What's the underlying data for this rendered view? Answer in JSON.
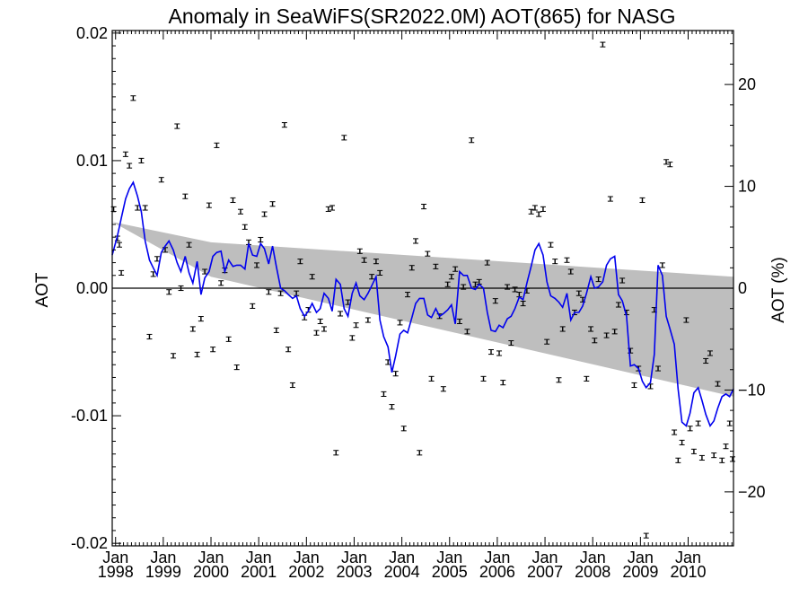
{
  "chart_data": {
    "type": "scatter",
    "title": "Anomaly in SeaWiFS(SR2022.0M) AOT(865) for NASG",
    "ylabel_left": "AOT",
    "ylabel_right": "AOT (%)",
    "xlabel": "",
    "xlim": [
      1997.93,
      2010.95
    ],
    "ylim": [
      -0.0202,
      0.0202
    ],
    "ylim_right_percent": [
      -25.3,
      25.3
    ],
    "x_ticks": [
      {
        "x": 1998.0,
        "month": "Jan",
        "year": "1998"
      },
      {
        "x": 1999.0,
        "month": "Jan",
        "year": "1999"
      },
      {
        "x": 2000.0,
        "month": "Jan",
        "year": "2000"
      },
      {
        "x": 2001.0,
        "month": "Jan",
        "year": "2001"
      },
      {
        "x": 2002.0,
        "month": "Jan",
        "year": "2002"
      },
      {
        "x": 2003.0,
        "month": "Jan",
        "year": "2003"
      },
      {
        "x": 2004.0,
        "month": "Jan",
        "year": "2004"
      },
      {
        "x": 2005.0,
        "month": "Jan",
        "year": "2005"
      },
      {
        "x": 2006.0,
        "month": "Jan",
        "year": "2006"
      },
      {
        "x": 2007.0,
        "month": "Jan",
        "year": "2007"
      },
      {
        "x": 2008.0,
        "month": "Jan",
        "year": "2008"
      },
      {
        "x": 2009.0,
        "month": "Jan",
        "year": "2009"
      },
      {
        "x": 2010.0,
        "month": "Jan",
        "year": "2010"
      }
    ],
    "y_ticks_left": [
      {
        "value": 0.02,
        "label": "0.02"
      },
      {
        "value": 0.01,
        "label": "0.01"
      },
      {
        "value": 0.0,
        "label": "0.00"
      },
      {
        "value": -0.01,
        "label": "-0.01"
      },
      {
        "value": -0.02,
        "label": "-0.02"
      }
    ],
    "y_ticks_right": [
      {
        "value": 20,
        "label": "20"
      },
      {
        "value": 10,
        "label": "10"
      },
      {
        "value": 0,
        "label": "0"
      },
      {
        "value": -10,
        "label": "−10"
      },
      {
        "value": -20,
        "label": "−20"
      }
    ],
    "zero_line": 0.0,
    "band": {
      "x": [
        1997.93,
        2000.0,
        2010.95
      ],
      "upper": [
        0.0052,
        0.0036,
        0.0009
      ],
      "lower": [
        0.0052,
        0.0009,
        -0.0085
      ],
      "color": "#bebebe"
    },
    "scatter_error_bar_half_height": 0.00018,
    "scatter_points": [
      [
        1997.96,
        0.0062
      ],
      [
        1998.04,
        0.0039
      ],
      [
        1998.08,
        0.0034
      ],
      [
        1998.12,
        0.0012
      ],
      [
        1998.21,
        0.0105
      ],
      [
        1998.29,
        0.0096
      ],
      [
        1998.37,
        0.0149
      ],
      [
        1998.46,
        0.0063
      ],
      [
        1998.54,
        0.01
      ],
      [
        1998.62,
        0.0063
      ],
      [
        1998.71,
        -0.0038
      ],
      [
        1998.79,
        0.0011
      ],
      [
        1998.87,
        0.0023
      ],
      [
        1998.96,
        0.0085
      ],
      [
        1999.04,
        0.003
      ],
      [
        1999.12,
        -0.0003
      ],
      [
        1999.21,
        -0.0053
      ],
      [
        1999.29,
        0.0127
      ],
      [
        1999.37,
        0.0
      ],
      [
        1999.46,
        0.0072
      ],
      [
        1999.54,
        0.0034
      ],
      [
        1999.62,
        -0.0032
      ],
      [
        1999.71,
        -0.0052
      ],
      [
        1999.79,
        -0.0024
      ],
      [
        1999.87,
        0.0013
      ],
      [
        1999.96,
        0.0065
      ],
      [
        2000.04,
        -0.0048
      ],
      [
        2000.12,
        0.0112
      ],
      [
        2000.21,
        0.0004
      ],
      [
        2000.29,
        0.0014
      ],
      [
        2000.37,
        -0.004
      ],
      [
        2000.46,
        0.0069
      ],
      [
        2000.54,
        -0.0062
      ],
      [
        2000.62,
        0.006
      ],
      [
        2000.71,
        0.0048
      ],
      [
        2000.79,
        0.0036
      ],
      [
        2000.87,
        -0.0014
      ],
      [
        2000.96,
        0.0018
      ],
      [
        2001.04,
        0.0038
      ],
      [
        2001.12,
        0.0058
      ],
      [
        2001.21,
        -0.0003
      ],
      [
        2001.29,
        0.0066
      ],
      [
        2001.37,
        -0.0033
      ],
      [
        2001.46,
        -0.0004
      ],
      [
        2001.54,
        0.0128
      ],
      [
        2001.62,
        -0.0048
      ],
      [
        2001.71,
        -0.0076
      ],
      [
        2001.79,
        -0.0004
      ],
      [
        2001.87,
        0.0021
      ],
      [
        2001.96,
        -0.0023
      ],
      [
        2002.04,
        -0.0017
      ],
      [
        2002.12,
        0.0009
      ],
      [
        2002.21,
        -0.0035
      ],
      [
        2002.29,
        -0.0026
      ],
      [
        2002.37,
        -0.0032
      ],
      [
        2002.46,
        0.0062
      ],
      [
        2002.54,
        0.0063
      ],
      [
        2002.62,
        -0.0129
      ],
      [
        2002.71,
        -0.002
      ],
      [
        2002.79,
        0.0118
      ],
      [
        2002.87,
        -0.0011
      ],
      [
        2002.96,
        -0.0039
      ],
      [
        2003.04,
        -0.0029
      ],
      [
        2003.12,
        0.0029
      ],
      [
        2003.21,
        0.0022
      ],
      [
        2003.29,
        -0.0025
      ],
      [
        2003.37,
        0.0009
      ],
      [
        2003.46,
        0.0021
      ],
      [
        2003.54,
        0.0012
      ],
      [
        2003.62,
        -0.0083
      ],
      [
        2003.71,
        -0.0058
      ],
      [
        2003.79,
        -0.0093
      ],
      [
        2003.87,
        -0.0067
      ],
      [
        2003.96,
        -0.0027
      ],
      [
        2004.04,
        -0.011
      ],
      [
        2004.12,
        -0.0005
      ],
      [
        2004.21,
        0.0016
      ],
      [
        2004.29,
        0.0037
      ],
      [
        2004.37,
        -0.0129
      ],
      [
        2004.46,
        0.0064
      ],
      [
        2004.54,
        0.0027
      ],
      [
        2004.62,
        -0.0071
      ],
      [
        2004.71,
        0.0017
      ],
      [
        2004.79,
        -0.0022
      ],
      [
        2004.87,
        -0.0079
      ],
      [
        2004.96,
        0.0003
      ],
      [
        2005.04,
        0.0009
      ],
      [
        2005.12,
        0.0015
      ],
      [
        2005.21,
        -0.0026
      ],
      [
        2005.29,
        0.0001
      ],
      [
        2005.37,
        -0.0034
      ],
      [
        2005.46,
        0.0116
      ],
      [
        2005.54,
        0.0003
      ],
      [
        2005.62,
        0.0005
      ],
      [
        2005.71,
        -0.0071
      ],
      [
        2005.79,
        0.002
      ],
      [
        2005.87,
        -0.005
      ],
      [
        2005.96,
        -0.001
      ],
      [
        2006.04,
        -0.0051
      ],
      [
        2006.12,
        -0.0074
      ],
      [
        2006.21,
        0.0001
      ],
      [
        2006.29,
        -0.0043
      ],
      [
        2006.37,
        -0.0001
      ],
      [
        2006.46,
        -0.0005
      ],
      [
        2006.54,
        -0.0012
      ],
      [
        2006.62,
        -0.0002
      ],
      [
        2006.71,
        0.006
      ],
      [
        2006.79,
        0.0063
      ],
      [
        2006.87,
        0.0058
      ],
      [
        2006.96,
        0.0062
      ],
      [
        2007.04,
        -0.0042
      ],
      [
        2007.12,
        0.0034
      ],
      [
        2007.21,
        0.0021
      ],
      [
        2007.29,
        -0.0072
      ],
      [
        2007.37,
        -0.0032
      ],
      [
        2007.46,
        0.0022
      ],
      [
        2007.54,
        0.0013
      ],
      [
        2007.62,
        -0.0019
      ],
      [
        2007.71,
        -0.0004
      ],
      [
        2007.79,
        -0.0009
      ],
      [
        2007.87,
        -0.0071
      ],
      [
        2007.96,
        -0.0032
      ],
      [
        2008.04,
        -0.0041
      ],
      [
        2008.12,
        0.0007
      ],
      [
        2008.21,
        0.0191
      ],
      [
        2008.29,
        -0.0037
      ],
      [
        2008.37,
        0.007
      ],
      [
        2008.46,
        -0.0034
      ],
      [
        2008.54,
        -0.0013
      ],
      [
        2008.62,
        0.0006
      ],
      [
        2008.71,
        -0.0019
      ],
      [
        2008.79,
        -0.0049
      ],
      [
        2008.87,
        -0.0076
      ],
      [
        2008.96,
        -0.0063
      ],
      [
        2009.04,
        0.0069
      ],
      [
        2009.12,
        -0.0194
      ],
      [
        2009.21,
        -0.0077
      ],
      [
        2009.29,
        -0.0017
      ],
      [
        2009.37,
        -0.0063
      ],
      [
        2009.46,
        0.0018
      ],
      [
        2009.54,
        0.0099
      ],
      [
        2009.62,
        0.0097
      ],
      [
        2009.71,
        -0.0113
      ],
      [
        2009.79,
        -0.0135
      ],
      [
        2009.87,
        -0.0121
      ],
      [
        2009.96,
        -0.0025
      ],
      [
        2010.04,
        -0.011
      ],
      [
        2010.12,
        -0.0128
      ],
      [
        2010.21,
        -0.0106
      ],
      [
        2010.29,
        -0.0133
      ],
      [
        2010.37,
        -0.0057
      ],
      [
        2010.46,
        -0.0051
      ],
      [
        2010.54,
        -0.0131
      ],
      [
        2010.62,
        -0.0075
      ],
      [
        2010.71,
        -0.0135
      ],
      [
        2010.79,
        -0.0124
      ],
      [
        2010.87,
        -0.0106
      ],
      [
        2010.93,
        -0.0134
      ]
    ],
    "line_color": "#0000ee",
    "line_points": [
      [
        1997.93,
        0.0026
      ],
      [
        1998.04,
        0.0041
      ],
      [
        1998.12,
        0.0055
      ],
      [
        1998.21,
        0.007
      ],
      [
        1998.29,
        0.0078
      ],
      [
        1998.37,
        0.0083
      ],
      [
        1998.46,
        0.0072
      ],
      [
        1998.54,
        0.006
      ],
      [
        1998.62,
        0.0037
      ],
      [
        1998.71,
        0.0022
      ],
      [
        1998.79,
        0.0016
      ],
      [
        1998.87,
        0.001
      ],
      [
        1998.96,
        0.0028
      ],
      [
        1999.04,
        0.0033
      ],
      [
        1999.12,
        0.0037
      ],
      [
        1999.21,
        0.003
      ],
      [
        1999.29,
        0.002
      ],
      [
        1999.37,
        0.0013
      ],
      [
        1999.46,
        0.0025
      ],
      [
        1999.54,
        0.0012
      ],
      [
        1999.62,
        0.0004
      ],
      [
        1999.71,
        0.0021
      ],
      [
        1999.79,
        -0.0005
      ],
      [
        1999.87,
        0.0008
      ],
      [
        1999.96,
        0.0013
      ],
      [
        2000.04,
        0.0025
      ],
      [
        2000.12,
        0.0028
      ],
      [
        2000.21,
        0.0029
      ],
      [
        2000.29,
        0.0013
      ],
      [
        2000.37,
        0.0022
      ],
      [
        2000.46,
        0.0017
      ],
      [
        2000.54,
        0.0018
      ],
      [
        2000.62,
        0.0018
      ],
      [
        2000.71,
        0.0015
      ],
      [
        2000.79,
        0.0035
      ],
      [
        2000.87,
        0.0026
      ],
      [
        2000.96,
        0.0025
      ],
      [
        2001.04,
        0.0035
      ],
      [
        2001.12,
        0.0031
      ],
      [
        2001.21,
        0.0019
      ],
      [
        2001.29,
        0.0033
      ],
      [
        2001.37,
        0.0017
      ],
      [
        2001.46,
        0.0
      ],
      [
        2001.54,
        -0.0002
      ],
      [
        2001.62,
        -0.0005
      ],
      [
        2001.71,
        -0.0008
      ],
      [
        2001.79,
        -0.0006
      ],
      [
        2001.87,
        -0.0016
      ],
      [
        2001.96,
        -0.0022
      ],
      [
        2002.04,
        -0.0018
      ],
      [
        2002.12,
        -0.0012
      ],
      [
        2002.21,
        -0.0019
      ],
      [
        2002.29,
        -0.0016
      ],
      [
        2002.37,
        -0.0004
      ],
      [
        2002.46,
        -0.0008
      ],
      [
        2002.54,
        -0.0018
      ],
      [
        2002.62,
        0.0007
      ],
      [
        2002.71,
        0.0003
      ],
      [
        2002.79,
        -0.0016
      ],
      [
        2002.87,
        -0.0022
      ],
      [
        2002.96,
        -0.0004
      ],
      [
        2003.04,
        0.0004
      ],
      [
        2003.12,
        -0.0006
      ],
      [
        2003.21,
        -0.0009
      ],
      [
        2003.29,
        -0.0004
      ],
      [
        2003.37,
        0.0002
      ],
      [
        2003.46,
        0.0009
      ],
      [
        2003.54,
        -0.0025
      ],
      [
        2003.62,
        -0.0038
      ],
      [
        2003.71,
        -0.0046
      ],
      [
        2003.79,
        -0.0066
      ],
      [
        2003.87,
        -0.0053
      ],
      [
        2003.96,
        -0.0036
      ],
      [
        2004.04,
        -0.0033
      ],
      [
        2004.12,
        -0.0035
      ],
      [
        2004.21,
        -0.0023
      ],
      [
        2004.29,
        -0.0012
      ],
      [
        2004.37,
        -0.0008
      ],
      [
        2004.46,
        -0.0008
      ],
      [
        2004.54,
        -0.0021
      ],
      [
        2004.62,
        -0.0023
      ],
      [
        2004.71,
        -0.0016
      ],
      [
        2004.79,
        -0.0022
      ],
      [
        2004.87,
        -0.002
      ],
      [
        2004.96,
        -0.0017
      ],
      [
        2005.04,
        -0.0013
      ],
      [
        2005.12,
        -0.0028
      ],
      [
        2005.21,
        0.0013
      ],
      [
        2005.29,
        0.001
      ],
      [
        2005.37,
        0.001
      ],
      [
        2005.46,
        0.0
      ],
      [
        2005.54,
        -0.0001
      ],
      [
        2005.62,
        0.0003
      ],
      [
        2005.71,
        0.0
      ],
      [
        2005.79,
        -0.0019
      ],
      [
        2005.87,
        -0.0033
      ],
      [
        2005.96,
        -0.0034
      ],
      [
        2006.04,
        -0.0029
      ],
      [
        2006.12,
        -0.0031
      ],
      [
        2006.21,
        -0.0024
      ],
      [
        2006.29,
        -0.0022
      ],
      [
        2006.37,
        -0.0016
      ],
      [
        2006.46,
        -0.0007
      ],
      [
        2006.54,
        -0.0009
      ],
      [
        2006.62,
        0.0004
      ],
      [
        2006.71,
        0.0017
      ],
      [
        2006.79,
        0.003
      ],
      [
        2006.87,
        0.0035
      ],
      [
        2006.96,
        0.0026
      ],
      [
        2007.04,
        0.0005
      ],
      [
        2007.12,
        -0.0006
      ],
      [
        2007.21,
        -0.0008
      ],
      [
        2007.29,
        -0.0011
      ],
      [
        2007.37,
        -0.0015
      ],
      [
        2007.46,
        -0.0004
      ],
      [
        2007.54,
        -0.0025
      ],
      [
        2007.62,
        -0.0019
      ],
      [
        2007.71,
        -0.0019
      ],
      [
        2007.79,
        -0.0014
      ],
      [
        2007.87,
        -0.0004
      ],
      [
        2007.96,
        0.0009
      ],
      [
        2008.04,
        0.0
      ],
      [
        2008.12,
        0.0001
      ],
      [
        2008.21,
        0.0005
      ],
      [
        2008.29,
        0.0018
      ],
      [
        2008.37,
        0.0023
      ],
      [
        2008.46,
        0.0025
      ],
      [
        2008.54,
        -0.0005
      ],
      [
        2008.62,
        -0.001
      ],
      [
        2008.71,
        -0.0022
      ],
      [
        2008.79,
        -0.0061
      ],
      [
        2008.87,
        -0.006
      ],
      [
        2008.96,
        -0.0063
      ],
      [
        2009.04,
        -0.0073
      ],
      [
        2009.12,
        -0.0078
      ],
      [
        2009.21,
        -0.0074
      ],
      [
        2009.29,
        -0.0052
      ],
      [
        2009.37,
        0.0018
      ],
      [
        2009.46,
        0.001
      ],
      [
        2009.54,
        -0.0022
      ],
      [
        2009.62,
        -0.0032
      ],
      [
        2009.71,
        -0.0044
      ],
      [
        2009.79,
        -0.0079
      ],
      [
        2009.87,
        -0.0105
      ],
      [
        2009.96,
        -0.0108
      ],
      [
        2010.04,
        -0.0098
      ],
      [
        2010.12,
        -0.0082
      ],
      [
        2010.21,
        -0.0078
      ],
      [
        2010.29,
        -0.0088
      ],
      [
        2010.37,
        -0.0099
      ],
      [
        2010.46,
        -0.0108
      ],
      [
        2010.54,
        -0.0104
      ],
      [
        2010.62,
        -0.0094
      ],
      [
        2010.71,
        -0.0085
      ],
      [
        2010.79,
        -0.0083
      ],
      [
        2010.87,
        -0.0085
      ],
      [
        2010.95,
        -0.0079
      ]
    ]
  }
}
